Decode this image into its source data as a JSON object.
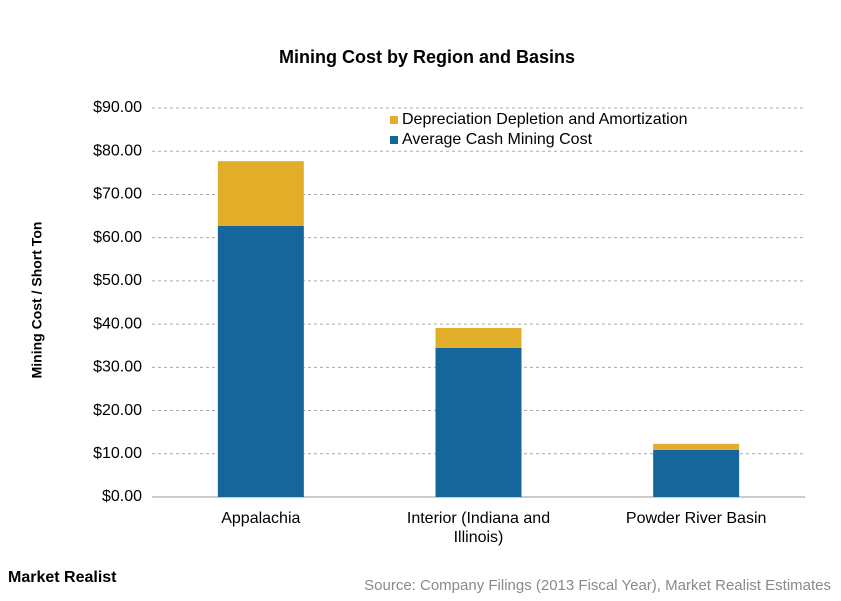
{
  "chart_data": {
    "type": "stacked_bar",
    "title": "Mining Cost by Region and Basins",
    "y_label": "Mining Cost / Short Ton",
    "categories": [
      "Appalachia",
      "Interior (Indiana and Illinois)",
      "Powder River Basin"
    ],
    "series": [
      {
        "name": "Average Cash Mining Cost",
        "color": "#17669b",
        "values": [
          62.7,
          34.5,
          10.9
        ]
      },
      {
        "name": "Depreciation Depletion and Amortization",
        "color": "#e2ad28",
        "values": [
          15.0,
          4.6,
          1.4
        ]
      }
    ],
    "ylim": [
      0,
      90
    ],
    "yticks": [
      {
        "value": 0,
        "label": "$0.00"
      },
      {
        "value": 10,
        "label": "$10.00"
      },
      {
        "value": 20,
        "label": "$20.00"
      },
      {
        "value": 30,
        "label": "$30.00"
      },
      {
        "value": 40,
        "label": "$40.00"
      },
      {
        "value": 50,
        "label": "$50.00"
      },
      {
        "value": 60,
        "label": "$60.00"
      },
      {
        "value": 70,
        "label": "$70.00"
      },
      {
        "value": 80,
        "label": "$80.00"
      },
      {
        "value": 90,
        "label": "$90.00"
      }
    ],
    "grid": true,
    "legend": "top-right"
  },
  "logo": "Market Realist",
  "source": "Source: Company Filings (2013 Fiscal Year), Market Realist Estimates"
}
